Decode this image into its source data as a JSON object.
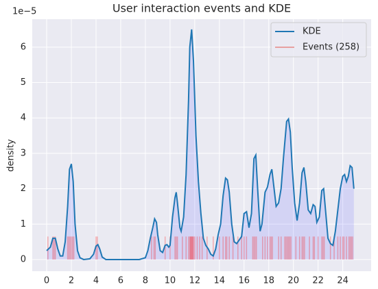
{
  "chart_data": {
    "type": "kde_rug",
    "title": "User interaction events and KDE",
    "y_label": "density",
    "y_offset_label": "1e−5",
    "xlim": [
      -1.17,
      26.3
    ],
    "ylim": [
      -0.33,
      6.79
    ],
    "xticks": [
      0,
      2,
      4,
      6,
      8,
      10,
      12,
      14,
      16,
      18,
      20,
      22,
      24
    ],
    "yticks": [
      0,
      1,
      2,
      3,
      4,
      5,
      6
    ],
    "grid": true,
    "legend": "upper right",
    "fill_color": "rgba(80,80,255,0.15)",
    "series": [
      {
        "name": "KDE",
        "color": "#1f77b4",
        "x": [
          0,
          0.3,
          0.5,
          0.7,
          0.9,
          1.1,
          1.3,
          1.5,
          1.7,
          1.85,
          2.0,
          2.15,
          2.3,
          2.5,
          2.7,
          3.0,
          3.5,
          3.8,
          4.0,
          4.15,
          4.3,
          4.5,
          4.8,
          6,
          7.5,
          8,
          8.2,
          8.4,
          8.6,
          8.75,
          8.9,
          9.0,
          9.2,
          9.4,
          9.6,
          9.75,
          9.9,
          10.0,
          10.2,
          10.4,
          10.5,
          10.6,
          10.8,
          10.9,
          11.1,
          11.3,
          11.5,
          11.6,
          11.75,
          11.9,
          12.1,
          12.3,
          12.5,
          12.7,
          12.9,
          13.1,
          13.3,
          13.5,
          13.7,
          13.9,
          14.1,
          14.3,
          14.5,
          14.65,
          14.8,
          15.0,
          15.2,
          15.4,
          15.6,
          15.8,
          16.0,
          16.2,
          16.4,
          16.6,
          16.8,
          16.95,
          17.1,
          17.3,
          17.45,
          17.7,
          17.9,
          18.1,
          18.25,
          18.4,
          18.6,
          18.8,
          19.0,
          19.2,
          19.45,
          19.6,
          19.75,
          19.9,
          20.1,
          20.3,
          20.5,
          20.7,
          20.85,
          21.0,
          21.2,
          21.4,
          21.6,
          21.75,
          21.9,
          22.1,
          22.3,
          22.45,
          22.6,
          22.8,
          23.0,
          23.2,
          23.4,
          23.6,
          23.8,
          24.0,
          24.15,
          24.3,
          24.45,
          24.6,
          24.75,
          24.9
        ],
        "values": [
          0.25,
          0.35,
          0.6,
          0.6,
          0.3,
          0.1,
          0.1,
          0.5,
          1.5,
          2.55,
          2.7,
          2.2,
          1.0,
          0.25,
          0.05,
          0.0,
          0.02,
          0.15,
          0.38,
          0.42,
          0.3,
          0.07,
          0.0,
          0,
          0,
          0.05,
          0.25,
          0.6,
          0.9,
          1.15,
          1.05,
          0.7,
          0.25,
          0.2,
          0.4,
          0.42,
          0.35,
          0.4,
          1.2,
          1.75,
          1.9,
          1.6,
          0.9,
          0.8,
          1.2,
          2.4,
          4.5,
          6.0,
          6.5,
          5.6,
          3.5,
          2.2,
          1.3,
          0.6,
          0.4,
          0.3,
          0.15,
          0.1,
          0.3,
          0.7,
          1.0,
          1.8,
          2.3,
          2.25,
          1.9,
          1.0,
          0.5,
          0.45,
          0.55,
          0.65,
          1.3,
          1.35,
          0.9,
          1.3,
          2.85,
          2.95,
          2.0,
          0.8,
          1.0,
          1.9,
          2.05,
          2.4,
          2.55,
          2.1,
          1.5,
          1.6,
          2.0,
          2.9,
          3.9,
          3.97,
          3.6,
          2.6,
          1.6,
          1.1,
          1.6,
          2.45,
          2.6,
          2.2,
          1.4,
          1.3,
          1.55,
          1.5,
          1.05,
          1.2,
          1.95,
          2.0,
          1.4,
          0.6,
          0.45,
          0.4,
          0.8,
          1.4,
          2.0,
          2.35,
          2.4,
          2.2,
          2.35,
          2.65,
          2.6,
          2.0
        ]
      },
      {
        "name": "Events (258)",
        "color": "#e8a0a0",
        "rug_height": 0.65,
        "x": [
          0.1,
          0.5,
          0.6,
          0.7,
          1.7,
          1.8,
          1.9,
          2.0,
          2.1,
          2.2,
          4.0,
          4.1,
          8.5,
          8.7,
          8.8,
          9.6,
          10.0,
          10.4,
          10.5,
          10.6,
          11.0,
          11.3,
          11.5,
          11.6,
          11.65,
          11.7,
          11.75,
          11.8,
          11.85,
          11.9,
          12.0,
          12.2,
          12.4,
          12.6,
          13.0,
          13.5,
          14.0,
          14.3,
          14.5,
          14.6,
          14.8,
          15.1,
          15.5,
          15.8,
          16.0,
          16.2,
          16.7,
          16.8,
          16.9,
          17.0,
          17.5,
          17.7,
          17.9,
          18.1,
          18.2,
          18.3,
          18.8,
          19.0,
          19.3,
          19.4,
          19.5,
          19.6,
          19.7,
          19.8,
          20.2,
          20.5,
          20.7,
          20.8,
          20.9,
          21.3,
          21.6,
          21.7,
          22.0,
          22.3,
          22.4,
          22.5,
          23.0,
          23.3,
          23.6,
          23.8,
          24.0,
          24.1,
          24.3,
          24.5,
          24.6,
          24.7,
          24.8
        ]
      }
    ]
  }
}
